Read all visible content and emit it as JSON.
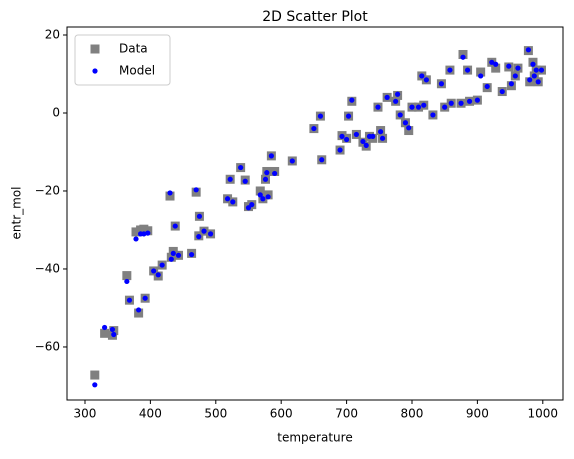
{
  "chart_data": {
    "type": "scatter",
    "title": "2D Scatter Plot",
    "x_label": "temperature",
    "y_label": "entr_mol",
    "xlim": [
      272.5,
      1030.9
    ],
    "ylim": [
      -73.6,
      22.05
    ],
    "xticks": [
      300,
      400,
      500,
      600,
      700,
      800,
      900,
      1000
    ],
    "yticks": [
      {
        "value": -60,
        "label": "−60"
      },
      {
        "value": -40,
        "label": "−40"
      },
      {
        "value": -20,
        "label": "−20"
      },
      0,
      20
    ],
    "grid": false,
    "legend": "upper left",
    "series": [
      {
        "name": "Data",
        "color": "#808080",
        "marker": "square",
        "x": [
          315,
          330,
          342,
          344,
          364,
          368,
          378,
          382,
          385,
          390,
          392,
          396,
          405,
          412,
          418,
          430,
          432,
          435,
          438,
          443,
          463,
          470,
          474,
          475,
          482,
          492,
          518,
          522,
          526,
          538,
          545,
          550,
          555,
          568,
          572,
          576,
          578,
          580,
          585,
          590,
          617,
          650,
          660,
          662,
          690,
          693,
          700,
          703,
          708,
          715,
          725,
          730,
          735,
          740,
          748,
          752,
          755,
          762,
          775,
          778,
          782,
          790,
          795,
          800,
          810,
          815,
          818,
          822,
          832,
          845,
          850,
          858,
          860,
          875,
          878,
          885,
          888,
          900,
          905,
          915,
          922,
          928,
          938,
          948,
          952,
          958,
          962,
          978,
          980,
          985,
          987,
          990,
          998,
          993
        ],
        "values": [
          -67.2,
          -56.5,
          -57,
          -55.8,
          -41.7,
          -48,
          -30.5,
          -51.3,
          -30,
          -29.8,
          -47.5,
          -30.2,
          -40.5,
          -41.8,
          -39,
          -21.3,
          -37,
          -35.5,
          -29,
          -36.5,
          -36,
          -20.3,
          -31.5,
          -26.5,
          -30.3,
          -31,
          -22,
          -17,
          -22.8,
          -14,
          -17.2,
          -24,
          -23.5,
          -20,
          -22,
          -17,
          -15,
          -21,
          -11,
          -15,
          -12.3,
          -4,
          -0.8,
          -12,
          -9.5,
          -5.8,
          -6.5,
          -0.8,
          3,
          -5.5,
          -7.5,
          -8.5,
          -6,
          -6.5,
          1.5,
          -4.5,
          -6.5,
          4,
          3,
          4.5,
          -0.5,
          -2.5,
          -4.5,
          1.5,
          1.5,
          9.5,
          2,
          8.5,
          -0.5,
          7.5,
          1.5,
          11,
          2.5,
          2.5,
          15,
          11,
          3,
          3.3,
          10.5,
          6.5,
          13,
          11.5,
          5.5,
          11.8,
          7,
          9.5,
          11.5,
          16,
          8,
          13,
          9.5,
          11,
          11,
          8
        ]
      },
      {
        "name": "Model",
        "color": "#0000ff",
        "marker": "circle",
        "x": [
          315,
          330,
          342,
          344,
          364,
          368,
          378,
          382,
          385,
          390,
          392,
          396,
          405,
          412,
          418,
          430,
          432,
          435,
          438,
          443,
          463,
          470,
          474,
          475,
          482,
          492,
          518,
          522,
          526,
          538,
          545,
          550,
          555,
          568,
          572,
          576,
          578,
          580,
          585,
          590,
          617,
          650,
          660,
          662,
          690,
          693,
          700,
          703,
          708,
          715,
          725,
          730,
          735,
          740,
          748,
          752,
          755,
          762,
          775,
          778,
          782,
          790,
          795,
          800,
          810,
          815,
          818,
          822,
          832,
          845,
          850,
          858,
          860,
          875,
          878,
          885,
          888,
          900,
          905,
          915,
          922,
          928,
          938,
          948,
          952,
          958,
          962,
          978,
          980,
          985,
          987,
          990,
          998,
          993
        ],
        "values": [
          -69.7,
          -55,
          -55.5,
          -56.8,
          -43.2,
          -48,
          -32.3,
          -50.5,
          -31,
          -31,
          -47.5,
          -30.8,
          -40.5,
          -41.5,
          -39,
          -20.5,
          -37.5,
          -36,
          -29,
          -36.5,
          -36.3,
          -19.7,
          -31.7,
          -26.5,
          -30.3,
          -31,
          -22,
          -17,
          -22.8,
          -14,
          -17.5,
          -24.3,
          -23.5,
          -21,
          -22,
          -17,
          -15.3,
          -21.5,
          -11,
          -15.5,
          -12.3,
          -4,
          -0.8,
          -12,
          -9.5,
          -6,
          -6.8,
          -0.8,
          3.3,
          -5.5,
          -7.3,
          -8.3,
          -6,
          -6,
          1.5,
          -4.8,
          -6.5,
          4,
          3,
          4.8,
          -0.5,
          -2.5,
          -3.8,
          1.5,
          1.5,
          9.5,
          2,
          8.5,
          -0.5,
          7.5,
          1.5,
          11,
          2.5,
          2.5,
          14.3,
          11,
          3,
          3.3,
          9.5,
          6.8,
          13,
          12.5,
          5.5,
          12,
          7.5,
          9.5,
          11.5,
          16.2,
          8.5,
          12.5,
          9.5,
          11,
          11,
          8
        ]
      }
    ]
  }
}
